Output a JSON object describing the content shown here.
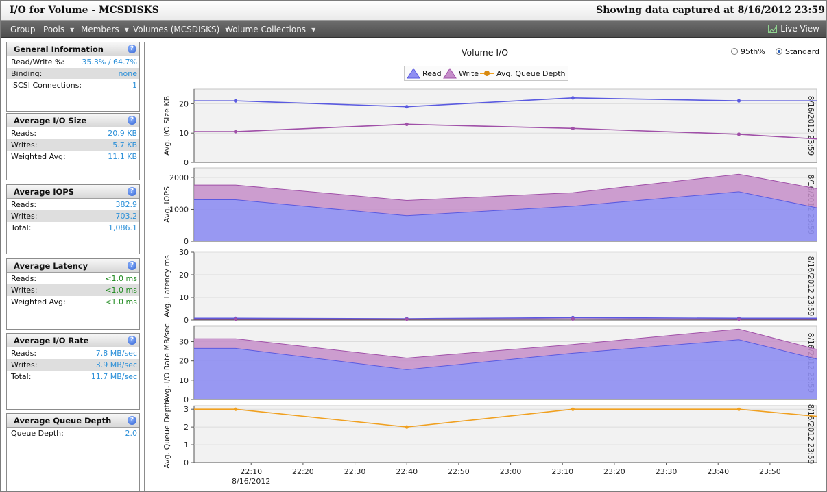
{
  "window": {
    "title": "I/O for Volume - MCSDISKS",
    "captured": "Showing data captured at 8/16/2012 23:59"
  },
  "menu": {
    "items": [
      {
        "label": "Group",
        "dropdown": false
      },
      {
        "label": "Pools",
        "dropdown": true
      },
      {
        "label": "Members",
        "dropdown": true
      },
      {
        "label": "Volumes (MCSDISKS)",
        "dropdown": true
      },
      {
        "label": "Volume Collections",
        "dropdown": true
      }
    ],
    "live_view": "Live View"
  },
  "panels": {
    "general": {
      "title": "General Information",
      "rows": [
        {
          "label": "Read/Write %:",
          "value": "35.3% / 64.7%"
        },
        {
          "label": "Binding:",
          "value": "none"
        },
        {
          "label": "iSCSI Connections:",
          "value": "1"
        }
      ]
    },
    "io_size": {
      "title": "Average I/O Size",
      "rows": [
        {
          "label": "Reads:",
          "value": "20.9 KB"
        },
        {
          "label": "Writes:",
          "value": "5.7 KB"
        },
        {
          "label": "Weighted Avg:",
          "value": "11.1 KB"
        }
      ]
    },
    "iops": {
      "title": "Average IOPS",
      "rows": [
        {
          "label": "Reads:",
          "value": "382.9"
        },
        {
          "label": "Writes:",
          "value": "703.2"
        },
        {
          "label": "Total:",
          "value": "1,086.1"
        }
      ]
    },
    "latency": {
      "title": "Average Latency",
      "rows": [
        {
          "label": "Reads:",
          "value": "<1.0 ms"
        },
        {
          "label": "Writes:",
          "value": "<1.0 ms"
        },
        {
          "label": "Weighted Avg:",
          "value": "<1.0 ms"
        }
      ]
    },
    "io_rate": {
      "title": "Average I/O Rate",
      "rows": [
        {
          "label": "Reads:",
          "value": "7.8 MB/sec"
        },
        {
          "label": "Writes:",
          "value": "3.9 MB/sec"
        },
        {
          "label": "Total:",
          "value": "11.7 MB/sec"
        }
      ]
    },
    "queue": {
      "title": "Average Queue Depth",
      "rows": [
        {
          "label": "Queue Depth:",
          "value": "2.0"
        }
      ]
    }
  },
  "chart_view": {
    "option_95th": "95th%",
    "option_standard": "Standard",
    "selected": "Standard"
  },
  "icons": {
    "help": "help-icon",
    "live_view": "chart-icon"
  },
  "colors": {
    "read": "#8e8ef2",
    "write": "#c58ec9",
    "queue": "#f0a020",
    "read_line": "#5a5ae0",
    "write_line": "#a050a8"
  },
  "chart_data": {
    "type": "area",
    "title": "Volume I/O",
    "legend": [
      "Read",
      "Write",
      "Avg. Queue Depth"
    ],
    "legend_position": "top-center",
    "x_tick_labels": [
      "22:10",
      "22:20",
      "22:30",
      "22:40",
      "22:50",
      "23:00",
      "23:10",
      "23:20",
      "23:30",
      "23:40",
      "23:50"
    ],
    "x_date_label": "8/16/2012",
    "x_range": [
      "21:59",
      "23:59"
    ],
    "timestamp_label": "8/16/2012 23:59",
    "x": [
      "21:59",
      "22:07",
      "22:40",
      "23:12",
      "23:44",
      "23:59"
    ],
    "panels": [
      {
        "type": "line",
        "ylabel": "Avg. I/O Size KB",
        "ylim": [
          0,
          25
        ],
        "yticks": [
          0,
          10,
          20
        ],
        "series": [
          {
            "name": "Read",
            "values": [
              21,
              21,
              19,
              22,
              21,
              21
            ]
          },
          {
            "name": "Write",
            "values": [
              10.5,
              10.5,
              13,
              11.6,
              9.6,
              8
            ]
          }
        ]
      },
      {
        "type": "area",
        "stacked": true,
        "ylabel": "Avg. IOPS",
        "ylim": [
          0,
          2300
        ],
        "yticks": [
          0,
          1000,
          2000
        ],
        "series": [
          {
            "name": "Read",
            "values": [
              1300,
              1300,
              800,
              1100,
              1550,
              1050
            ]
          },
          {
            "name": "Write",
            "values": [
              460,
              460,
              480,
              420,
              550,
              600
            ]
          }
        ]
      },
      {
        "type": "line",
        "ylabel": "Avg. Latency ms",
        "ylim": [
          0,
          30
        ],
        "yticks": [
          0,
          10,
          20,
          30
        ],
        "series": [
          {
            "name": "Read",
            "values": [
              0.8,
              0.8,
              0.6,
              1.1,
              0.8,
              0.8
            ]
          },
          {
            "name": "Write",
            "values": [
              0.4,
              0.4,
              0.4,
              0.5,
              0.4,
              0.4
            ]
          }
        ]
      },
      {
        "type": "area",
        "stacked": true,
        "ylabel": "Avg. I/O Rate MB/sec",
        "ylim": [
          0,
          38
        ],
        "yticks": [
          0,
          10,
          20,
          30
        ],
        "series": [
          {
            "name": "Read",
            "values": [
              26.5,
              26.5,
              15.5,
              24,
              31,
              21
            ]
          },
          {
            "name": "Write",
            "values": [
              5,
              5,
              6,
              4.5,
              5.5,
              5
            ]
          }
        ]
      },
      {
        "type": "line",
        "ylabel": "Avg. Queue Depth",
        "ylim": [
          0,
          3.2
        ],
        "yticks": [
          0,
          1,
          2,
          3
        ],
        "series": [
          {
            "name": "Avg. Queue Depth",
            "values": [
              3,
              3,
              2,
              3,
              3,
              2.6
            ]
          }
        ]
      }
    ]
  }
}
